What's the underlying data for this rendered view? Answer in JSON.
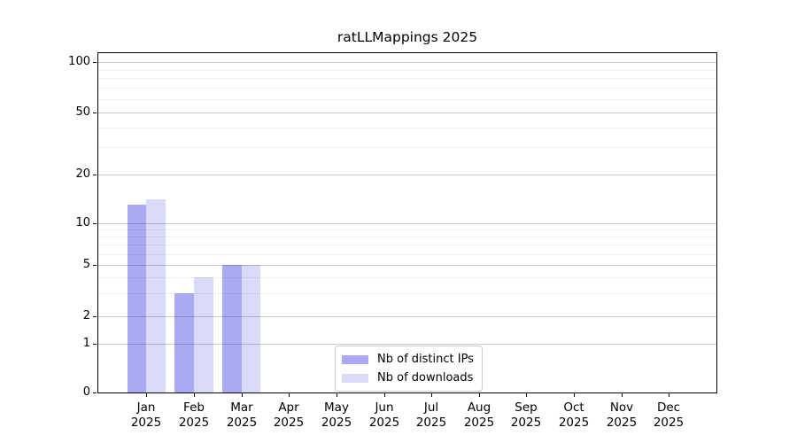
{
  "chart_data": {
    "type": "bar",
    "title": "ratLLMappings 2025",
    "year_label": "2025",
    "categories": [
      "Jan",
      "Feb",
      "Mar",
      "Apr",
      "May",
      "Jun",
      "Jul",
      "Aug",
      "Sep",
      "Oct",
      "Nov",
      "Dec"
    ],
    "series": [
      {
        "name": "Nb of distinct IPs",
        "color": "#a9a9f4",
        "values": [
          13,
          3,
          5,
          0,
          0,
          0,
          0,
          0,
          0,
          0,
          0,
          0
        ]
      },
      {
        "name": "Nb of downloads",
        "color": "#d9d9f8",
        "values": [
          14,
          4,
          5,
          0,
          0,
          0,
          0,
          0,
          0,
          0,
          0,
          0
        ]
      }
    ],
    "y_axis": {
      "scale": "log-like",
      "ticks": [
        100,
        50,
        20,
        10,
        5,
        2,
        1,
        0
      ],
      "tick_labels": [
        "100",
        "50",
        "20",
        "10",
        "5",
        "2",
        "1",
        "0"
      ],
      "minor_ticks": [
        90,
        80,
        70,
        60,
        40,
        30,
        9,
        8,
        7,
        6,
        4,
        3
      ],
      "ylim": [
        0,
        112
      ]
    },
    "legend": {
      "location": "lower center",
      "entries": [
        "Nb of distinct IPs",
        "Nb of downloads"
      ]
    },
    "grid": {
      "major": true,
      "minor": true
    }
  }
}
